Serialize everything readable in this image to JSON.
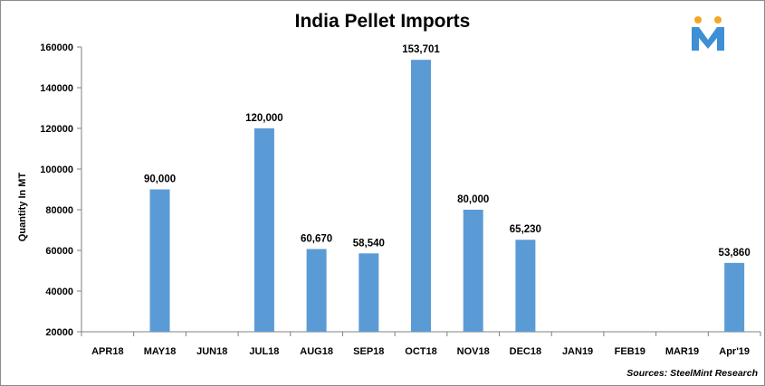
{
  "chart_data": {
    "type": "bar",
    "title": "India Pellet Imports",
    "xlabel": "",
    "ylabel": "Quantity In MT",
    "categories": [
      "APR18",
      "MAY18",
      "JUN18",
      "JUL18",
      "AUG18",
      "SEP18",
      "OCT18",
      "NOV18",
      "DEC18",
      "JAN19",
      "FEB19",
      "MAR19",
      "Apr'19"
    ],
    "values": [
      null,
      90000,
      null,
      120000,
      60670,
      58540,
      153701,
      80000,
      65230,
      null,
      null,
      null,
      53860
    ],
    "data_labels": [
      "",
      "90,000",
      "",
      "120,000",
      "60,670",
      "58,540",
      "153,701",
      "80,000",
      "65,230",
      "",
      "",
      "",
      "53,860"
    ],
    "ylim": [
      20000,
      160000
    ],
    "yticks": [
      20000,
      40000,
      60000,
      80000,
      100000,
      120000,
      140000,
      160000
    ],
    "ytick_labels": [
      "20000",
      "40000",
      "60000",
      "80000",
      "100000",
      "120000",
      "140000",
      "160000"
    ],
    "grid": false,
    "bar_color": "#5b9bd5"
  },
  "source": "Sources: SteelMint Research",
  "logo": {
    "icon": "steelmint-m-logo",
    "colors": {
      "primary": "#3d8fd6",
      "accent": "#f5a623"
    }
  }
}
